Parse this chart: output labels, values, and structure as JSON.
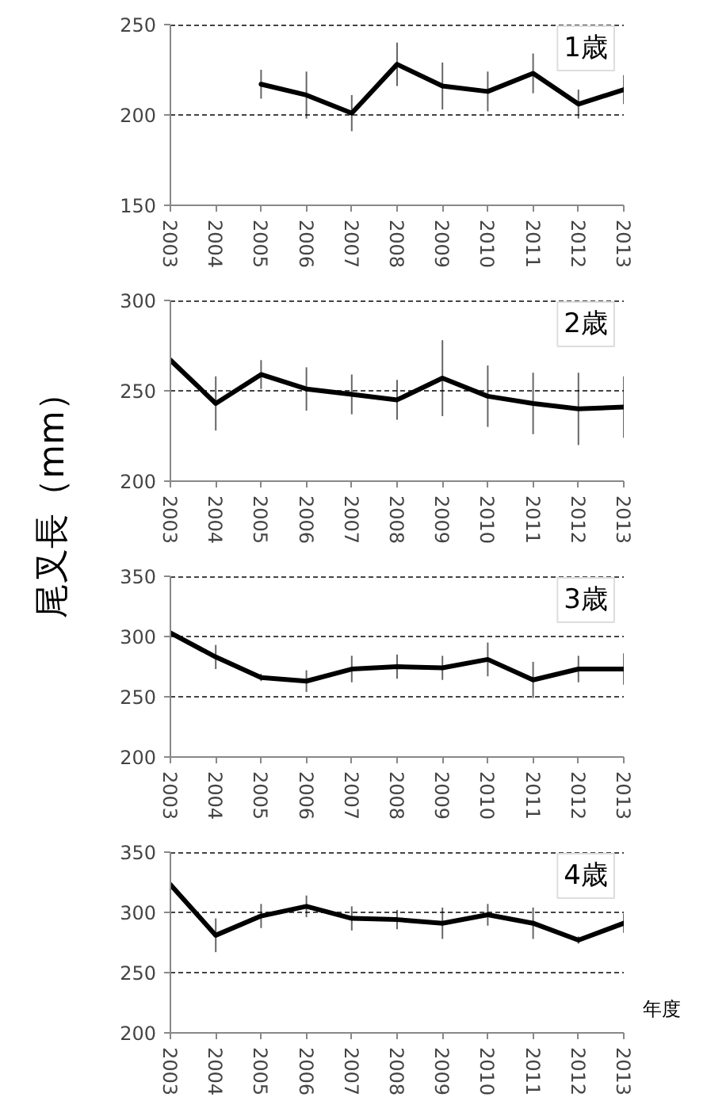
{
  "chart_data": [
    {
      "type": "line",
      "ylabel": "尾叉長（mm）",
      "categories": [
        "2003",
        "2004",
        "2005",
        "2006",
        "2007",
        "2008",
        "2009",
        "2010",
        "2011",
        "2012",
        "2013"
      ],
      "series": [
        {
          "color": "#000000",
          "values": [
            null,
            null,
            217,
            211,
            201,
            228,
            216,
            213,
            223,
            206,
            214
          ],
          "errors": [
            null,
            null,
            8,
            13,
            10,
            12,
            13,
            11,
            11,
            8,
            8
          ]
        }
      ],
      "ylim": [
        150,
        250
      ],
      "yticks": [
        150,
        200,
        250
      ],
      "grid": "y",
      "annotations": [
        "1歳"
      ]
    },
    {
      "type": "line",
      "categories": [
        "2003",
        "2004",
        "2005",
        "2006",
        "2007",
        "2008",
        "2009",
        "2010",
        "2011",
        "2012",
        "2013"
      ],
      "series": [
        {
          "color": "#000000",
          "values": [
            267,
            243,
            259,
            251,
            248,
            245,
            257,
            247,
            243,
            240,
            241
          ],
          "errors": [
            8,
            15,
            8,
            12,
            11,
            11,
            21,
            17,
            17,
            20,
            17
          ]
        }
      ],
      "ylim": [
        200,
        300
      ],
      "yticks": [
        200,
        250,
        300
      ],
      "grid": "y",
      "annotations": [
        "2歳"
      ]
    },
    {
      "type": "line",
      "categories": [
        "2003",
        "2004",
        "2005",
        "2006",
        "2007",
        "2008",
        "2009",
        "2010",
        "2011",
        "2012",
        "2013"
      ],
      "series": [
        {
          "color": "#000000",
          "values": [
            303,
            283,
            266,
            263,
            273,
            275,
            274,
            281,
            264,
            273,
            273
          ],
          "errors": [
            12,
            10,
            3,
            9,
            11,
            10,
            10,
            14,
            15,
            11,
            13
          ]
        }
      ],
      "ylim": [
        200,
        350
      ],
      "yticks": [
        200,
        250,
        300,
        350
      ],
      "grid": "y",
      "annotations": [
        "3歳"
      ]
    },
    {
      "type": "line",
      "xlabel": "年度",
      "categories": [
        "2003",
        "2004",
        "2005",
        "2006",
        "2007",
        "2008",
        "2009",
        "2010",
        "2011",
        "2012",
        "2013"
      ],
      "series": [
        {
          "color": "#000000",
          "values": [
            323,
            281,
            297,
            305,
            295,
            294,
            291,
            298,
            291,
            277,
            291
          ],
          "errors": [
            null,
            14,
            10,
            9,
            10,
            8,
            13,
            9,
            13,
            3,
            8
          ]
        }
      ],
      "ylim": [
        200,
        350
      ],
      "yticks": [
        200,
        250,
        300,
        350
      ],
      "grid": "y",
      "annotations": [
        "4歳"
      ]
    }
  ]
}
